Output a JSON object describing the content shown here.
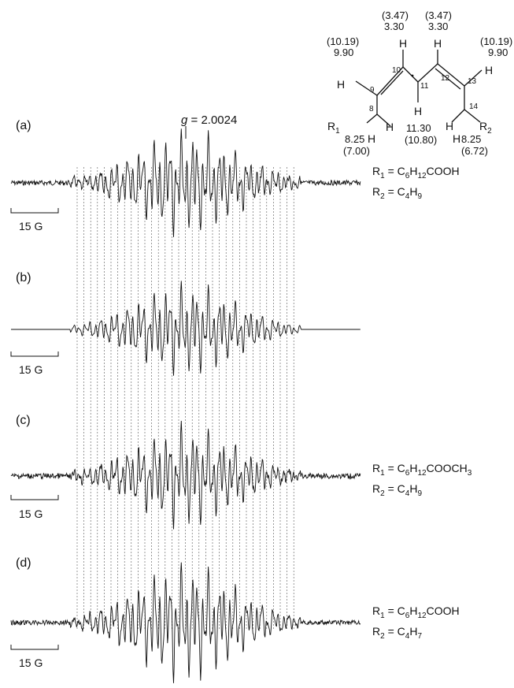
{
  "g_label": {
    "g": "g",
    "rest": " = 2.0024"
  },
  "panels": [
    {
      "label": "(a)",
      "scale": "15 G",
      "r1": {
        "pre": "R",
        "sub1": "1",
        "mid": " = C",
        "sub2": "6",
        "mid2": "H",
        "sub3": "12",
        "post": "COOH"
      },
      "r2": {
        "pre": "R",
        "sub1": "2",
        "mid": " = C",
        "sub2": "4",
        "mid2": "H",
        "sub3": "9",
        "post": ""
      }
    },
    {
      "label": "(b)",
      "scale": "15 G"
    },
    {
      "label": "(c)",
      "scale": "15 G",
      "r1": {
        "pre": "R",
        "sub1": "1",
        "mid": " = C",
        "sub2": "6",
        "mid2": "H",
        "sub3": "12",
        "post": "COOCH",
        "sub4": "3"
      },
      "r2": {
        "pre": "R",
        "sub1": "2",
        "mid": " = C",
        "sub2": "4",
        "mid2": "H",
        "sub3": "9",
        "post": ""
      }
    },
    {
      "label": "(d)",
      "scale": "15 G",
      "r1": {
        "pre": "R",
        "sub1": "1",
        "mid": " = C",
        "sub2": "6",
        "mid2": "H",
        "sub3": "12",
        "post": "COOH"
      },
      "r2": {
        "pre": "R",
        "sub1": "2",
        "mid": " = C",
        "sub2": "4",
        "mid2": "H",
        "sub3": "7",
        "post": ""
      }
    }
  ],
  "molecule": {
    "h10_paren": "(3.47)",
    "h10_val": "3.30",
    "h12_paren": "(3.47)",
    "h12_val": "3.30",
    "h9_paren": "(10.19)",
    "h9_val": "9.90",
    "h13_paren": "(10.19)",
    "h13_val": "9.90",
    "h11_val": "11.30",
    "h11_paren": "(10.80)",
    "h8_val": "8.25",
    "h8_paren": "(7.00)",
    "h14_val": "8.25",
    "h14_paren": "(6.72)",
    "atom_H": "H",
    "R": "R",
    "r1_sub": "1",
    "r2_sub": "2",
    "c8": "8",
    "c9": "9",
    "c10": "10",
    "c11": "11",
    "c12": "12",
    "c13": "13",
    "c14": "14"
  }
}
